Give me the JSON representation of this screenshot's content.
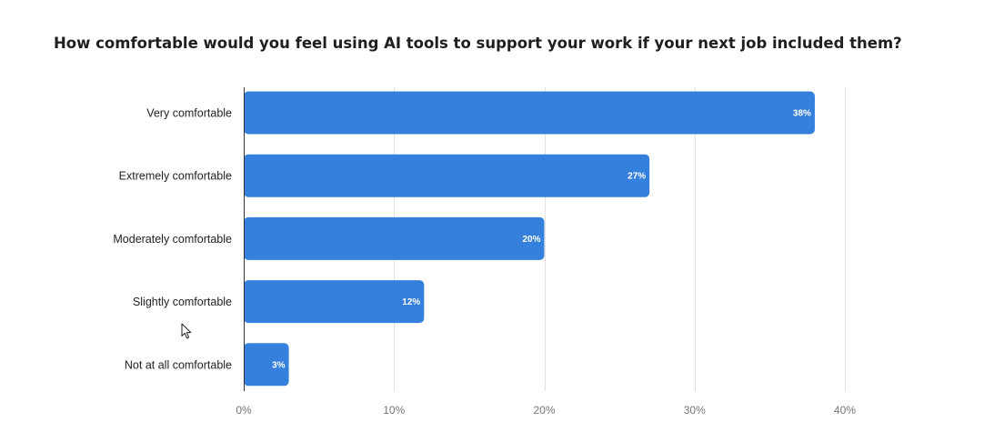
{
  "chart_data": {
    "type": "bar",
    "orientation": "horizontal",
    "title": "How comfortable would you feel using AI tools to support your work if your next job included them?",
    "categories": [
      "Very comfortable",
      "Extremely comfortable",
      "Moderately comfortable",
      "Slightly comfortable",
      "Not at all comfortable"
    ],
    "values": [
      38,
      27,
      20,
      12,
      3
    ],
    "data_labels": [
      "38%",
      "27%",
      "20%",
      "12%",
      "3%"
    ],
    "xlim": [
      0,
      40
    ],
    "x_ticks": [
      0,
      10,
      20,
      30,
      40
    ],
    "x_tick_labels": [
      "0%",
      "10%",
      "20%",
      "30%",
      "40%"
    ],
    "xlabel": "",
    "ylabel": "",
    "grid": true,
    "legend": "none",
    "bar_color": "#3580dc"
  },
  "cursor": {
    "icon": "mouse-pointer-icon"
  }
}
